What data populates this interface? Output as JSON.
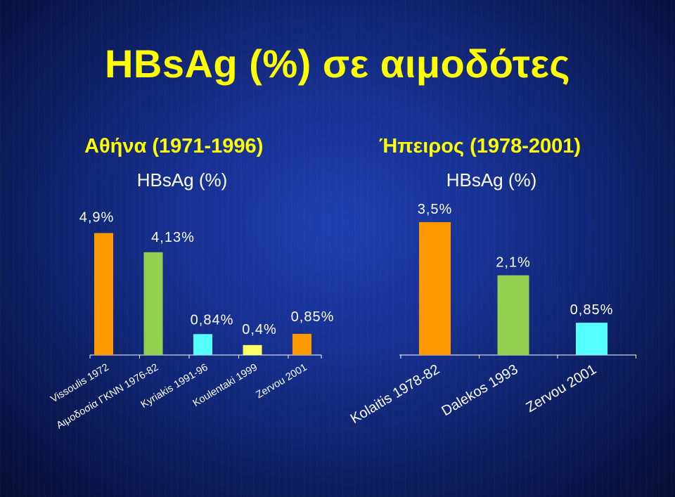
{
  "page": {
    "title": "HBsAg (%) σε αιμοδότες",
    "left_heading": "Αθήνα (1971-1996)",
    "right_heading": "Ήπειρος (1978-2001)",
    "background_color": "#16308f",
    "title_color": "#ffff00"
  },
  "chart_data": [
    {
      "type": "bar",
      "title": "HBsAg (%)",
      "categories": [
        "Vissoulis 1972",
        "Αιμοδοσία ΓΚΝΝ 1976-82",
        "Kyriakis 1991-96",
        "Koulentaki 1999",
        "Zervou 2001"
      ],
      "values": [
        4.9,
        4.13,
        0.84,
        0.4,
        0.85
      ],
      "data_labels": [
        "4,9%",
        "4,13%",
        "0,84%",
        "0,4%",
        "0,85%"
      ],
      "colors": [
        "#ff9900",
        "#92d050",
        "#55ffff",
        "#ffff66",
        "#ff9900"
      ],
      "ylim": [
        0,
        5
      ],
      "grid": false
    },
    {
      "type": "bar",
      "title": "HBsAg (%)",
      "categories": [
        "Kolaitis 1978-82",
        "Dalekos 1993",
        "Zervou 2001"
      ],
      "values": [
        3.5,
        2.1,
        0.85
      ],
      "data_labels": [
        "3,5%",
        "2,1%",
        "0,85%"
      ],
      "colors": [
        "#ff9900",
        "#92d050",
        "#55ffff"
      ],
      "ylim": [
        0,
        3.5
      ],
      "grid": false
    }
  ]
}
